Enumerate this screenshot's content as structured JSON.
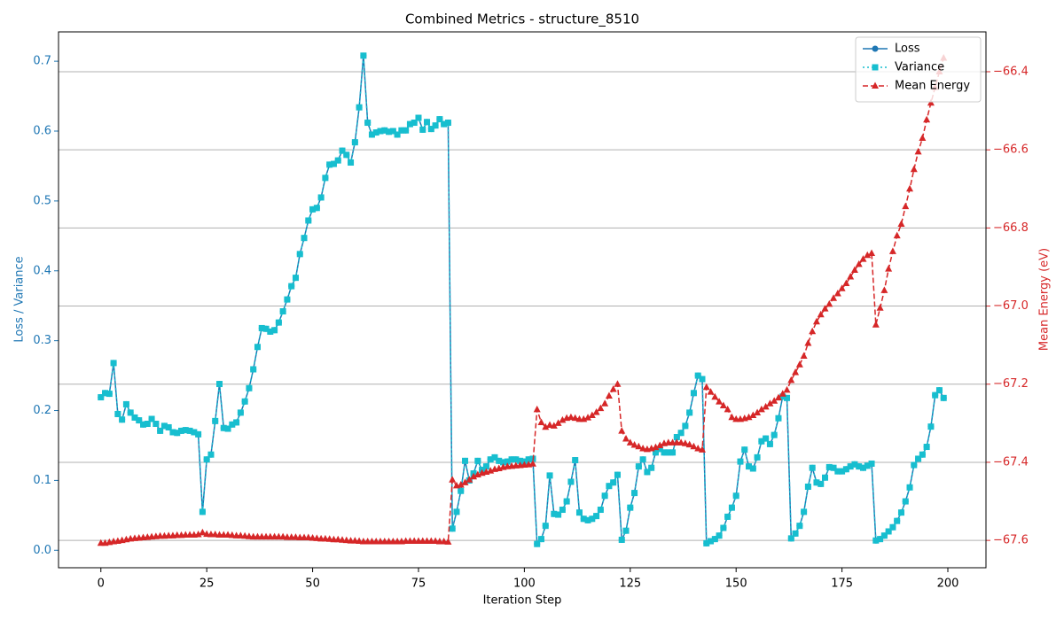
{
  "chart_data": {
    "type": "line",
    "title": "Combined Metrics - structure_8510",
    "xlabel": "Iteration Step",
    "ylabel": "Loss / Variance",
    "y2label": "Mean Energy (eV)",
    "xlim": [
      -10,
      209
    ],
    "ylim": [
      -0.025,
      0.742
    ],
    "y2lim": [
      -67.67,
      -66.298
    ],
    "xticks": [
      0,
      25,
      50,
      75,
      100,
      125,
      150,
      175,
      200
    ],
    "yticks": [
      {
        "value": 0,
        "label": "0.0"
      },
      {
        "value": 0.1,
        "label": "0.1"
      },
      {
        "value": 0.2,
        "label": "0.2"
      },
      {
        "value": 0.3,
        "label": "0.3"
      },
      {
        "value": 0.4,
        "label": "0.4"
      },
      {
        "value": 0.5,
        "label": "0.5"
      },
      {
        "value": 0.6,
        "label": "0.6"
      },
      {
        "value": 0.7,
        "label": "0.7"
      }
    ],
    "y2ticks": [
      {
        "value": -67.6,
        "label": "−67.6"
      },
      {
        "value": -67.4,
        "label": "−67.4"
      },
      {
        "value": -67.2,
        "label": "−67.2"
      },
      {
        "value": -67.0,
        "label": "−67.0"
      },
      {
        "value": -66.8,
        "label": "−66.8"
      },
      {
        "value": -66.6,
        "label": "−66.6"
      },
      {
        "value": -66.4,
        "label": "−66.4"
      }
    ],
    "grid": "y2",
    "legend": "upper right",
    "ycolor": "#1f77b4",
    "y2color": "#d62728",
    "x": [
      0,
      1,
      2,
      3,
      4,
      5,
      6,
      7,
      8,
      9,
      10,
      11,
      12,
      13,
      14,
      15,
      16,
      17,
      18,
      19,
      20,
      21,
      22,
      23,
      24,
      25,
      26,
      27,
      28,
      29,
      30,
      31,
      32,
      33,
      34,
      35,
      36,
      37,
      38,
      39,
      40,
      41,
      42,
      43,
      44,
      45,
      46,
      47,
      48,
      49,
      50,
      51,
      52,
      53,
      54,
      55,
      56,
      57,
      58,
      59,
      60,
      61,
      62,
      63,
      64,
      65,
      66,
      67,
      68,
      69,
      70,
      71,
      72,
      73,
      74,
      75,
      76,
      77,
      78,
      79,
      80,
      81,
      82,
      83,
      84,
      85,
      86,
      87,
      88,
      89,
      90,
      91,
      92,
      93,
      94,
      95,
      96,
      97,
      98,
      99,
      100,
      101,
      102,
      103,
      104,
      105,
      106,
      107,
      108,
      109,
      110,
      111,
      112,
      113,
      114,
      115,
      116,
      117,
      118,
      119,
      120,
      121,
      122,
      123,
      124,
      125,
      126,
      127,
      128,
      129,
      130,
      131,
      132,
      133,
      134,
      135,
      136,
      137,
      138,
      139,
      140,
      141,
      142,
      143,
      144,
      145,
      146,
      147,
      148,
      149,
      150,
      151,
      152,
      153,
      154,
      155,
      156,
      157,
      158,
      159,
      160,
      161,
      162,
      163,
      164,
      165,
      166,
      167,
      168,
      169,
      170,
      171,
      172,
      173,
      174,
      175,
      176,
      177,
      178,
      179,
      180,
      181,
      182,
      183,
      184,
      185,
      186,
      187,
      188,
      189,
      190,
      191,
      192,
      193,
      194,
      195,
      196,
      197,
      198,
      199
    ],
    "series": [
      {
        "name": "Loss",
        "color": "#1f77b4",
        "marker": "o",
        "linestyle": "solid",
        "axis": "y",
        "values": [
          0.219,
          0.225,
          0.224,
          0.268,
          0.195,
          0.187,
          0.209,
          0.197,
          0.19,
          0.186,
          0.18,
          0.181,
          0.188,
          0.181,
          0.171,
          0.178,
          0.176,
          0.169,
          0.168,
          0.171,
          0.172,
          0.171,
          0.169,
          0.166,
          0.055,
          0.13,
          0.137,
          0.185,
          0.238,
          0.175,
          0.174,
          0.18,
          0.183,
          0.197,
          0.213,
          0.232,
          0.259,
          0.291,
          0.318,
          0.317,
          0.313,
          0.315,
          0.326,
          0.342,
          0.359,
          0.378,
          0.39,
          0.424,
          0.447,
          0.472,
          0.488,
          0.49,
          0.505,
          0.533,
          0.552,
          0.553,
          0.558,
          0.572,
          0.566,
          0.555,
          0.584,
          0.634,
          0.708,
          0.612,
          0.595,
          0.598,
          0.6,
          0.601,
          0.599,
          0.6,
          0.595,
          0.601,
          0.601,
          0.61,
          0.612,
          0.619,
          0.602,
          0.613,
          0.603,
          0.608,
          0.617,
          0.61,
          0.612,
          0.031,
          0.055,
          0.085,
          0.128,
          0.1,
          0.11,
          0.128,
          0.115,
          0.12,
          0.13,
          0.133,
          0.128,
          0.126,
          0.127,
          0.13,
          0.13,
          0.128,
          0.127,
          0.13,
          0.131,
          0.009,
          0.016,
          0.035,
          0.107,
          0.052,
          0.051,
          0.058,
          0.07,
          0.098,
          0.129,
          0.054,
          0.045,
          0.043,
          0.045,
          0.049,
          0.058,
          0.078,
          0.092,
          0.097,
          0.108,
          0.015,
          0.028,
          0.061,
          0.082,
          0.12,
          0.13,
          0.112,
          0.118,
          0.14,
          0.145,
          0.14,
          0.14,
          0.14,
          0.162,
          0.168,
          0.178,
          0.197,
          0.225,
          0.25,
          0.245,
          0.01,
          0.013,
          0.016,
          0.021,
          0.032,
          0.048,
          0.061,
          0.078,
          0.127,
          0.144,
          0.12,
          0.117,
          0.133,
          0.156,
          0.16,
          0.152,
          0.165,
          0.189,
          0.22,
          0.218,
          0.017,
          0.024,
          0.035,
          0.055,
          0.091,
          0.118,
          0.097,
          0.095,
          0.104,
          0.119,
          0.118,
          0.113,
          0.113,
          0.116,
          0.12,
          0.123,
          0.12,
          0.118,
          0.121,
          0.124,
          0.014,
          0.016,
          0.021,
          0.027,
          0.033,
          0.042,
          0.054,
          0.07,
          0.09,
          0.122,
          0.131,
          0.137,
          0.148,
          0.177,
          0.222,
          0.229,
          0.218
        ]
      },
      {
        "name": "Variance",
        "color": "#17becf",
        "marker": "s",
        "linestyle": "dotted",
        "axis": "y",
        "values": [
          0.219,
          0.225,
          0.224,
          0.268,
          0.195,
          0.187,
          0.209,
          0.197,
          0.19,
          0.186,
          0.18,
          0.181,
          0.188,
          0.181,
          0.171,
          0.178,
          0.176,
          0.169,
          0.168,
          0.171,
          0.172,
          0.171,
          0.169,
          0.166,
          0.055,
          0.13,
          0.137,
          0.185,
          0.238,
          0.175,
          0.174,
          0.18,
          0.183,
          0.197,
          0.213,
          0.232,
          0.259,
          0.291,
          0.318,
          0.317,
          0.313,
          0.315,
          0.326,
          0.342,
          0.359,
          0.378,
          0.39,
          0.424,
          0.447,
          0.472,
          0.488,
          0.49,
          0.505,
          0.533,
          0.552,
          0.553,
          0.558,
          0.572,
          0.566,
          0.555,
          0.584,
          0.634,
          0.708,
          0.612,
          0.595,
          0.598,
          0.6,
          0.601,
          0.599,
          0.6,
          0.595,
          0.601,
          0.601,
          0.61,
          0.612,
          0.619,
          0.602,
          0.613,
          0.603,
          0.608,
          0.617,
          0.61,
          0.612,
          0.031,
          0.055,
          0.085,
          0.128,
          0.1,
          0.11,
          0.128,
          0.115,
          0.12,
          0.13,
          0.133,
          0.128,
          0.126,
          0.127,
          0.13,
          0.13,
          0.128,
          0.127,
          0.13,
          0.131,
          0.009,
          0.016,
          0.035,
          0.107,
          0.052,
          0.051,
          0.058,
          0.07,
          0.098,
          0.129,
          0.054,
          0.045,
          0.043,
          0.045,
          0.049,
          0.058,
          0.078,
          0.092,
          0.097,
          0.108,
          0.015,
          0.028,
          0.061,
          0.082,
          0.12,
          0.13,
          0.112,
          0.118,
          0.14,
          0.145,
          0.14,
          0.14,
          0.14,
          0.162,
          0.168,
          0.178,
          0.197,
          0.225,
          0.25,
          0.245,
          0.01,
          0.013,
          0.016,
          0.021,
          0.032,
          0.048,
          0.061,
          0.078,
          0.127,
          0.144,
          0.12,
          0.117,
          0.133,
          0.156,
          0.16,
          0.152,
          0.165,
          0.189,
          0.22,
          0.218,
          0.017,
          0.024,
          0.035,
          0.055,
          0.091,
          0.118,
          0.097,
          0.095,
          0.104,
          0.119,
          0.118,
          0.113,
          0.113,
          0.116,
          0.12,
          0.123,
          0.12,
          0.118,
          0.121,
          0.124,
          0.014,
          0.016,
          0.021,
          0.027,
          0.033,
          0.042,
          0.054,
          0.07,
          0.09,
          0.122,
          0.131,
          0.137,
          0.148,
          0.177,
          0.222,
          0.229,
          0.218
        ]
      },
      {
        "name": "Mean Energy",
        "color": "#d62728",
        "marker": "^",
        "linestyle": "dashed",
        "axis": "y2",
        "values": [
          -67.607,
          -67.607,
          -67.605,
          -67.603,
          -67.602,
          -67.6,
          -67.598,
          -67.596,
          -67.595,
          -67.594,
          -67.593,
          -67.592,
          -67.591,
          -67.59,
          -67.589,
          -67.589,
          -67.588,
          -67.588,
          -67.587,
          -67.587,
          -67.586,
          -67.586,
          -67.586,
          -67.585,
          -67.58,
          -67.584,
          -67.585,
          -67.585,
          -67.586,
          -67.586,
          -67.586,
          -67.587,
          -67.588,
          -67.588,
          -67.589,
          -67.59,
          -67.591,
          -67.591,
          -67.591,
          -67.591,
          -67.591,
          -67.591,
          -67.591,
          -67.591,
          -67.592,
          -67.592,
          -67.592,
          -67.593,
          -67.593,
          -67.593,
          -67.594,
          -67.595,
          -67.596,
          -67.596,
          -67.597,
          -67.598,
          -67.598,
          -67.599,
          -67.6,
          -67.601,
          -67.601,
          -67.602,
          -67.603,
          -67.603,
          -67.603,
          -67.603,
          -67.603,
          -67.603,
          -67.603,
          -67.603,
          -67.603,
          -67.603,
          -67.602,
          -67.602,
          -67.602,
          -67.602,
          -67.602,
          -67.602,
          -67.602,
          -67.602,
          -67.603,
          -67.603,
          -67.604,
          -67.445,
          -67.46,
          -67.458,
          -67.452,
          -67.445,
          -67.437,
          -67.432,
          -67.428,
          -67.425,
          -67.422,
          -67.418,
          -67.416,
          -67.413,
          -67.411,
          -67.41,
          -67.409,
          -67.408,
          -67.407,
          -67.406,
          -67.404,
          -67.265,
          -67.298,
          -67.31,
          -67.305,
          -67.307,
          -67.3,
          -67.292,
          -67.287,
          -67.285,
          -67.287,
          -67.29,
          -67.29,
          -67.286,
          -67.28,
          -67.272,
          -67.262,
          -67.25,
          -67.23,
          -67.213,
          -67.2,
          -67.32,
          -67.34,
          -67.35,
          -67.356,
          -67.36,
          -67.365,
          -67.367,
          -67.365,
          -67.362,
          -67.357,
          -67.352,
          -67.35,
          -67.35,
          -67.35,
          -67.35,
          -67.352,
          -67.355,
          -67.36,
          -67.365,
          -67.368,
          -67.208,
          -67.22,
          -67.233,
          -67.245,
          -67.255,
          -67.265,
          -67.285,
          -67.29,
          -67.29,
          -67.288,
          -67.285,
          -67.28,
          -67.273,
          -67.265,
          -67.258,
          -67.25,
          -67.243,
          -67.235,
          -67.225,
          -67.215,
          -67.19,
          -67.17,
          -67.15,
          -67.128,
          -67.095,
          -67.065,
          -67.04,
          -67.022,
          -67.007,
          -66.995,
          -66.98,
          -66.968,
          -66.955,
          -66.942,
          -66.925,
          -66.908,
          -66.893,
          -66.88,
          -66.87,
          -66.865,
          -67.048,
          -67.005,
          -66.96,
          -66.905,
          -66.86,
          -66.82,
          -66.79,
          -66.745,
          -66.7,
          -66.65,
          -66.605,
          -66.57,
          -66.523,
          -66.48,
          -66.44,
          -66.4,
          -66.365
        ]
      }
    ]
  }
}
